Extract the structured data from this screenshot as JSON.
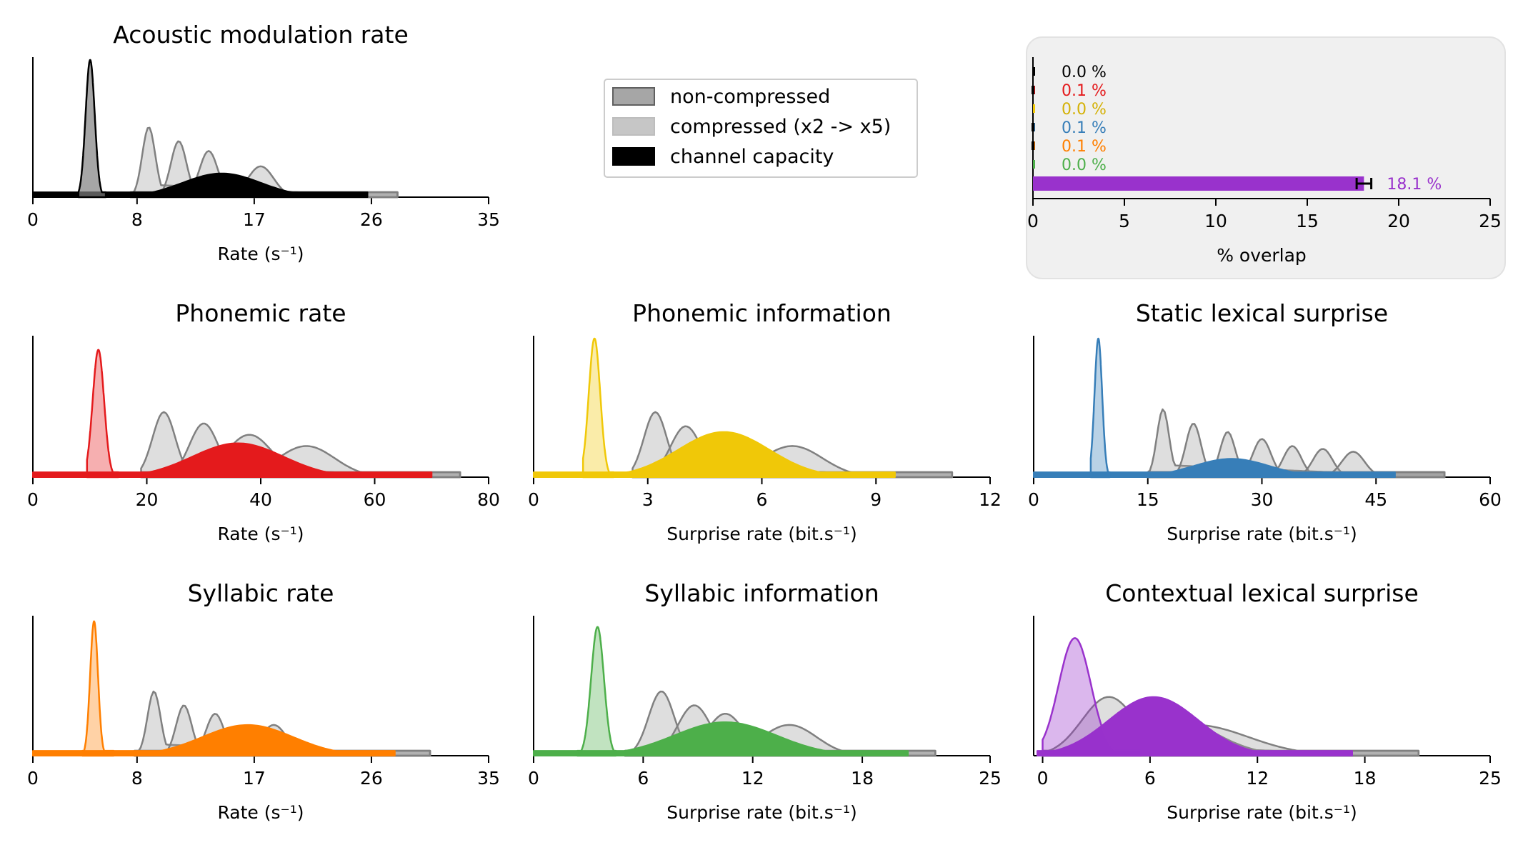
{
  "legend": {
    "items": [
      {
        "label": "non-compressed",
        "swatch": "non-compressed"
      },
      {
        "label": "compressed (x2 -> x5)",
        "swatch": "compressed"
      },
      {
        "label": "channel capacity",
        "swatch": "capacity"
      }
    ]
  },
  "colors": {
    "gray_edge": "#808080",
    "gray_fill": "#dcdcdc",
    "capacity": "#000000",
    "panel_bg": "#f0f0f0",
    "phonemic_rate": "#e41a1c",
    "phonemic_information": "#f0c808",
    "static_lexical_surprise": "#377eb8",
    "syllabic_rate": "#ff7f00",
    "syllabic_information": "#4daf4a",
    "contextual_lexical_surprise": "#9932cc"
  },
  "chart_data": [
    {
      "type": "area",
      "title": "Acoustic modulation rate",
      "xlabel": "Rate (s⁻¹)",
      "xlim": [
        0,
        35
      ],
      "xticks": [
        0,
        8,
        17,
        26,
        35
      ],
      "color": "#000000",
      "series": [
        {
          "name": "non-compressed",
          "mode": "x1",
          "peak_x": 4.4,
          "spread": 0.35,
          "x_range": [
            3.5,
            5.6
          ],
          "height": 0.98
        },
        {
          "name": "compressed (x2 -> x5)",
          "mode": "x2",
          "peak_x": 8.9,
          "spread": 0.5,
          "x_range": [
            7.5,
            28.0
          ],
          "height": 0.5
        },
        {
          "name": "compressed (x2 -> x5)",
          "mode": "x3",
          "peak_x": 11.2,
          "spread": 0.6,
          "x_range": [
            7.5,
            28.0
          ],
          "height": 0.4
        },
        {
          "name": "compressed (x2 -> x5)",
          "mode": "x4",
          "peak_x": 13.5,
          "spread": 0.7,
          "x_range": [
            7.5,
            28.0
          ],
          "height": 0.33
        },
        {
          "name": "compressed (x2 -> x5)",
          "mode": "x5",
          "peak_x": 17.5,
          "spread": 1.0,
          "x_range": [
            7.5,
            28.0
          ],
          "height": 0.22
        },
        {
          "name": "channel capacity",
          "mode": "capacity",
          "peak_x": 14.5,
          "spread": 3.0,
          "x_range": [
            0,
            25.7
          ],
          "height": 0.17
        }
      ]
    },
    {
      "type": "bar",
      "orientation": "horizontal",
      "xlabel": "% overlap",
      "xlim": [
        0,
        25
      ],
      "xticks": [
        0,
        5,
        10,
        15,
        20,
        25
      ],
      "values": [
        0.0,
        0.1,
        0.0,
        0.1,
        0.1,
        0.0,
        18.1
      ],
      "labels": [
        "0.0 %",
        "0.1 %",
        "0.0 %",
        "0.1 %",
        "0.1 %",
        "0.0 %",
        "18.1 %"
      ],
      "bar_colors": [
        "#000000",
        "#e41a1c",
        "#f0c808",
        "#377eb8",
        "#ff7f00",
        "#4daf4a",
        "#9932cc"
      ],
      "label_colors": [
        "#000000",
        "#e41a1c",
        "#d4b106",
        "#377eb8",
        "#ff7f00",
        "#4daf4a",
        "#9932cc"
      ],
      "error": [
        0,
        0.1,
        0,
        0.1,
        0.1,
        0,
        0.4
      ]
    },
    {
      "type": "area",
      "title": "Phonemic rate",
      "xlabel": "Rate (s⁻¹)",
      "xlim": [
        0,
        80
      ],
      "xticks": [
        0,
        20,
        40,
        60,
        80
      ],
      "color": "#e41a1c",
      "series": [
        {
          "name": "non-compressed",
          "mode": "x1",
          "peak_x": 11.5,
          "spread": 1.0,
          "x_range": [
            9.5,
            15.0
          ],
          "height": 0.9
        },
        {
          "name": "compressed (x2 -> x5)",
          "mode": "x2",
          "peak_x": 23.0,
          "spread": 2.0,
          "x_range": [
            19.0,
            75.0
          ],
          "height": 0.46
        },
        {
          "name": "compressed (x2 -> x5)",
          "mode": "x3",
          "peak_x": 30.0,
          "spread": 2.5,
          "x_range": [
            19.0,
            75.0
          ],
          "height": 0.38
        },
        {
          "name": "compressed (x2 -> x5)",
          "mode": "x4",
          "peak_x": 38.0,
          "spread": 4.0,
          "x_range": [
            19.0,
            75.0
          ],
          "height": 0.3
        },
        {
          "name": "compressed (x2 -> x5)",
          "mode": "x5",
          "peak_x": 48.0,
          "spread": 5.0,
          "x_range": [
            19.0,
            75.0
          ],
          "height": 0.22
        },
        {
          "name": "channel capacity",
          "mode": "capacity",
          "peak_x": 36.0,
          "spread": 8.0,
          "x_range": [
            0,
            70.0
          ],
          "height": 0.24
        }
      ]
    },
    {
      "type": "area",
      "title": "Phonemic information",
      "xlabel": "Surprise rate (bit.s⁻¹)",
      "xlim": [
        0,
        12
      ],
      "xticks": [
        0,
        3,
        6,
        9,
        12
      ],
      "color": "#f0c808",
      "series": [
        {
          "name": "non-compressed",
          "mode": "x1",
          "peak_x": 1.6,
          "spread": 0.15,
          "x_range": [
            1.3,
            2.1
          ],
          "height": 0.98
        },
        {
          "name": "compressed (x2 -> x5)",
          "mode": "x2",
          "peak_x": 3.2,
          "spread": 0.3,
          "x_range": [
            2.6,
            11.0
          ],
          "height": 0.46
        },
        {
          "name": "compressed (x2 -> x5)",
          "mode": "x3",
          "peak_x": 4.0,
          "spread": 0.4,
          "x_range": [
            2.6,
            11.0
          ],
          "height": 0.36
        },
        {
          "name": "compressed (x2 -> x5)",
          "mode": "x4",
          "peak_x": 5.2,
          "spread": 0.6,
          "x_range": [
            2.6,
            11.0
          ],
          "height": 0.3
        },
        {
          "name": "compressed (x2 -> x5)",
          "mode": "x5",
          "peak_x": 6.8,
          "spread": 0.8,
          "x_range": [
            2.6,
            11.0
          ],
          "height": 0.22
        },
        {
          "name": "channel capacity",
          "mode": "capacity",
          "peak_x": 5.0,
          "spread": 1.2,
          "x_range": [
            0,
            9.5
          ],
          "height": 0.32
        }
      ]
    },
    {
      "type": "area",
      "title": "Static lexical surprise",
      "xlabel": "Surprise rate (bit.s⁻¹)",
      "xlim": [
        0,
        60
      ],
      "xticks": [
        0,
        15,
        30,
        45,
        60
      ],
      "color": "#377eb8",
      "series": [
        {
          "name": "non-compressed",
          "mode": "x1",
          "peak_x": 8.5,
          "spread": 0.5,
          "x_range": [
            7.5,
            10.0
          ],
          "height": 0.98
        },
        {
          "name": "compressed (x2 -> x5)",
          "mode": "x2",
          "peak_x": 17.0,
          "spread": 0.8,
          "x_range": [
            15.0,
            54.0
          ],
          "height": 0.48
        },
        {
          "name": "compressed (x2 -> x5)",
          "mode": "x3",
          "peak_x": 21.0,
          "spread": 1.0,
          "x_range": [
            15.0,
            54.0
          ],
          "height": 0.38
        },
        {
          "name": "compressed (x2 -> x5)",
          "mode": "x4",
          "peak_x": 25.5,
          "spread": 1.0,
          "x_range": [
            15.0,
            54.0
          ],
          "height": 0.32
        },
        {
          "name": "compressed (x2 -> x5)",
          "mode": "x5",
          "peak_x": 30.0,
          "spread": 1.2,
          "x_range": [
            15.0,
            54.0
          ],
          "height": 0.27
        },
        {
          "name": "compressed (x2 -> x5)",
          "mode": "x5b",
          "peak_x": 34.0,
          "spread": 1.2,
          "x_range": [
            15.0,
            54.0
          ],
          "height": 0.22
        },
        {
          "name": "compressed (x2 -> x5)",
          "mode": "x5c",
          "peak_x": 38.0,
          "spread": 1.3,
          "x_range": [
            15.0,
            54.0
          ],
          "height": 0.2
        },
        {
          "name": "compressed (x2 -> x5)",
          "mode": "x5d",
          "peak_x": 42.0,
          "spread": 1.5,
          "x_range": [
            15.0,
            54.0
          ],
          "height": 0.18
        },
        {
          "name": "channel capacity",
          "mode": "capacity",
          "peak_x": 26.0,
          "spread": 5.0,
          "x_range": [
            0,
            47.5
          ],
          "height": 0.13
        }
      ]
    },
    {
      "type": "area",
      "title": "Syllabic rate",
      "xlabel": "Rate (s⁻¹)",
      "xlim": [
        0,
        35
      ],
      "xticks": [
        0,
        8,
        17,
        26,
        35
      ],
      "color": "#ff7f00",
      "series": [
        {
          "name": "non-compressed",
          "mode": "x1",
          "peak_x": 4.7,
          "spread": 0.3,
          "x_range": [
            3.8,
            6.2
          ],
          "height": 0.96
        },
        {
          "name": "compressed (x2 -> x5)",
          "mode": "x2",
          "peak_x": 9.3,
          "spread": 0.5,
          "x_range": [
            7.8,
            30.5
          ],
          "height": 0.46
        },
        {
          "name": "compressed (x2 -> x5)",
          "mode": "x3",
          "peak_x": 11.6,
          "spread": 0.6,
          "x_range": [
            7.8,
            30.5
          ],
          "height": 0.36
        },
        {
          "name": "compressed (x2 -> x5)",
          "mode": "x4",
          "peak_x": 14.0,
          "spread": 0.7,
          "x_range": [
            7.8,
            30.5
          ],
          "height": 0.3
        },
        {
          "name": "compressed (x2 -> x5)",
          "mode": "x5",
          "peak_x": 18.5,
          "spread": 1.0,
          "x_range": [
            7.8,
            30.5
          ],
          "height": 0.22
        },
        {
          "name": "channel capacity",
          "mode": "capacity",
          "peak_x": 16.5,
          "spread": 3.5,
          "x_range": [
            0,
            27.8
          ],
          "height": 0.22
        }
      ]
    },
    {
      "type": "area",
      "title": "Syllabic information",
      "xlabel": "Surprise rate (bit.s⁻¹)",
      "xlim": [
        0,
        25
      ],
      "xticks": [
        0,
        6,
        12,
        18,
        25
      ],
      "color": "#4daf4a",
      "series": [
        {
          "name": "non-compressed",
          "mode": "x1",
          "peak_x": 3.5,
          "spread": 0.35,
          "x_range": [
            2.4,
            4.5
          ],
          "height": 0.92
        },
        {
          "name": "compressed (x2 -> x5)",
          "mode": "x2",
          "peak_x": 7.0,
          "spread": 0.7,
          "x_range": [
            5.0,
            22.0
          ],
          "height": 0.46
        },
        {
          "name": "compressed (x2 -> x5)",
          "mode": "x3",
          "peak_x": 8.8,
          "spread": 0.9,
          "x_range": [
            5.0,
            22.0
          ],
          "height": 0.36
        },
        {
          "name": "compressed (x2 -> x5)",
          "mode": "x4",
          "peak_x": 10.5,
          "spread": 1.0,
          "x_range": [
            5.0,
            22.0
          ],
          "height": 0.3
        },
        {
          "name": "compressed (x2 -> x5)",
          "mode": "x5",
          "peak_x": 14.0,
          "spread": 1.5,
          "x_range": [
            5.0,
            22.0
          ],
          "height": 0.22
        },
        {
          "name": "channel capacity",
          "mode": "capacity",
          "peak_x": 10.5,
          "spread": 2.8,
          "x_range": [
            0,
            20.5
          ],
          "height": 0.24
        }
      ]
    },
    {
      "type": "area",
      "title": "Contextual lexical surprise",
      "xlabel": "Surprise rate (bit.s⁻¹)",
      "xlim": [
        -0.5,
        25
      ],
      "xticks": [
        0,
        6,
        12,
        18,
        25
      ],
      "color": "#9932cc",
      "series": [
        {
          "name": "non-compressed",
          "mode": "x1",
          "peak_x": 1.8,
          "spread": 0.9,
          "x_range": [
            0.0,
            5.5
          ],
          "height": 0.84
        },
        {
          "name": "compressed (x2 -> x5)",
          "mode": "x2",
          "peak_x": 3.7,
          "spread": 1.5,
          "x_range": [
            0.0,
            21.0
          ],
          "height": 0.42
        },
        {
          "name": "compressed (x2 -> x5)",
          "mode": "x3",
          "peak_x": 5.5,
          "spread": 2.0,
          "x_range": [
            0.0,
            21.0
          ],
          "height": 0.34
        },
        {
          "name": "compressed (x2 -> x5)",
          "mode": "x4",
          "peak_x": 7.0,
          "spread": 2.5,
          "x_range": [
            0.0,
            21.0
          ],
          "height": 0.28
        },
        {
          "name": "compressed (x2 -> x5)",
          "mode": "x5",
          "peak_x": 8.5,
          "spread": 3.0,
          "x_range": [
            0.0,
            21.0
          ],
          "height": 0.22
        },
        {
          "name": "channel capacity",
          "mode": "capacity",
          "peak_x": 6.2,
          "spread": 2.5,
          "x_range": [
            -0.3,
            17.3
          ],
          "height": 0.42
        }
      ]
    }
  ]
}
